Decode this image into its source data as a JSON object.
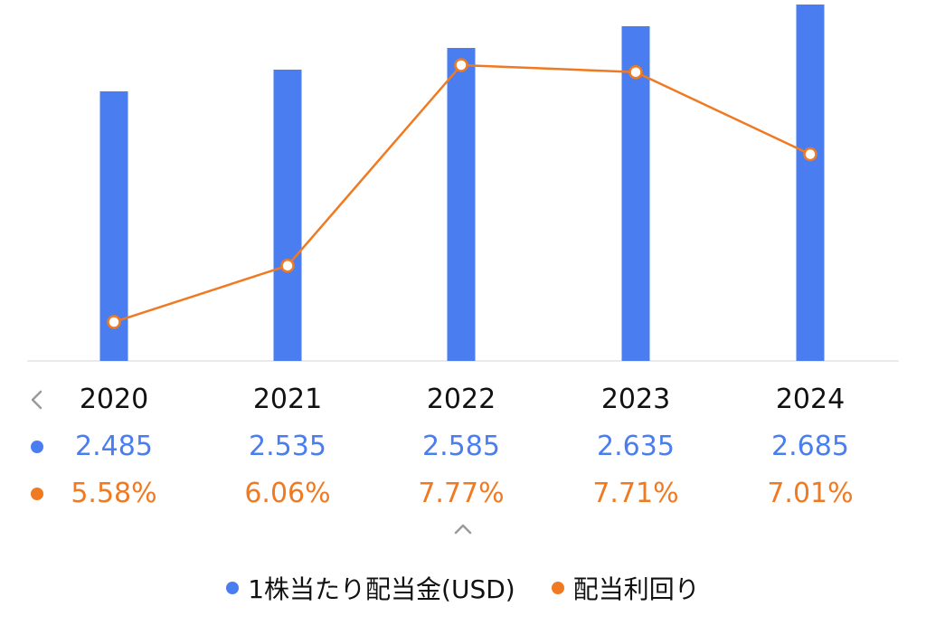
{
  "chart_data": {
    "type": "bar+line",
    "categories": [
      "2020",
      "2021",
      "2022",
      "2023",
      "2024"
    ],
    "series": [
      {
        "name": "1株当たり配当金(USD)",
        "type": "bar",
        "values": [
          2.485,
          2.535,
          2.585,
          2.635,
          2.685
        ],
        "labels": [
          "2.485",
          "2.535",
          "2.585",
          "2.635",
          "2.685"
        ],
        "color": "#4a7ef0"
      },
      {
        "name": "配当利回り",
        "type": "line",
        "values": [
          5.58,
          6.06,
          7.77,
          7.71,
          7.01
        ],
        "labels": [
          "5.58%",
          "6.06%",
          "7.77%",
          "7.71%",
          "7.01%"
        ],
        "color": "#f07a22"
      }
    ],
    "legend_position": "bottom",
    "grid": false
  },
  "icons": {
    "prev": "chevron-left-icon",
    "expand": "chevron-up-icon"
  }
}
